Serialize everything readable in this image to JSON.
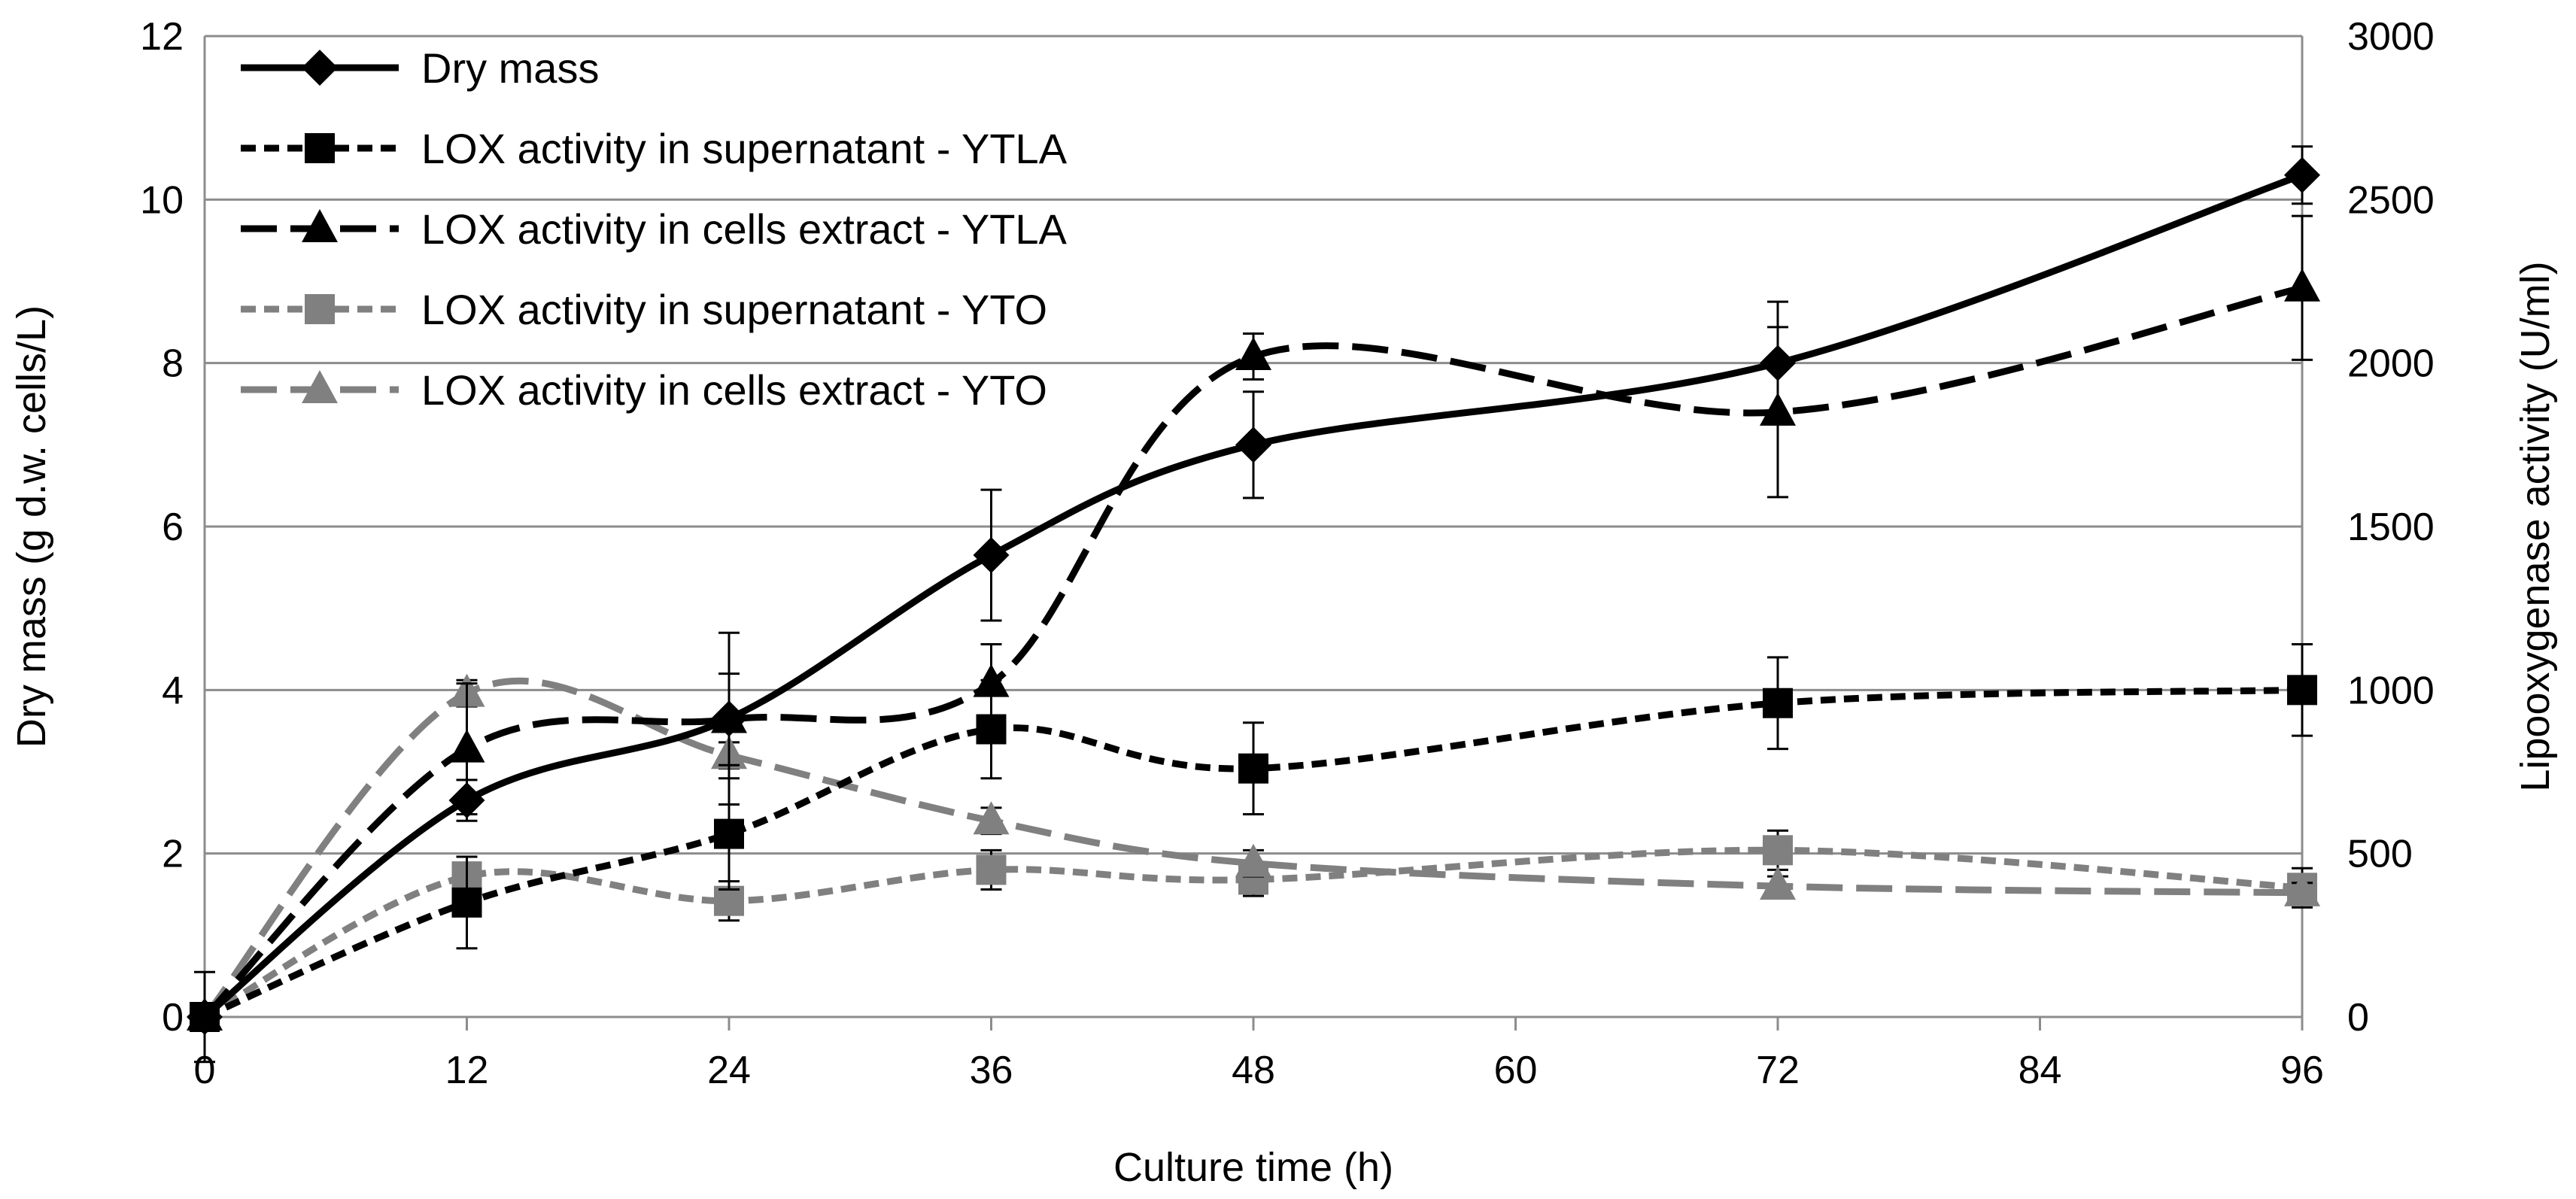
{
  "chart_data": {
    "type": "line",
    "title": "",
    "xlabel": "Culture time (h)",
    "ylabel": "Dry mass (g d.w. cells/L)",
    "y2label": "Lipooxygenase activity (U/ml)",
    "xlim": [
      0,
      96
    ],
    "ylim": [
      0,
      12
    ],
    "y2lim": [
      0,
      3000
    ],
    "x_ticks": [
      "0",
      "12",
      "24",
      "36",
      "48",
      "60",
      "72",
      "84",
      "96"
    ],
    "y_ticks": [
      "0",
      "2",
      "4",
      "6",
      "8",
      "10",
      "12"
    ],
    "y2_ticks": [
      "0",
      "500",
      "1000",
      "1500",
      "2000",
      "2500",
      "3000"
    ],
    "grid": "horizontal",
    "legend_position": "top-left",
    "series": [
      {
        "name": "Dry mass",
        "axis": "left",
        "color": "#000000",
        "marker": "diamond",
        "dash": "solid",
        "x": [
          0,
          12,
          24,
          36,
          48,
          72,
          96
        ],
        "values": [
          0,
          2.65,
          3.65,
          5.65,
          7.0,
          8.0,
          10.3
        ],
        "errors": [
          0.55,
          0.25,
          1.05,
          0.8,
          0.65,
          0.75,
          0.35
        ]
      },
      {
        "name": "LOX activity in supernatant - YTLA",
        "axis": "right",
        "color": "#000000",
        "marker": "square",
        "dash": "short",
        "x": [
          0,
          12,
          24,
          36,
          48,
          72,
          96
        ],
        "values": [
          0,
          350,
          560,
          880,
          760,
          960,
          1000
        ],
        "errors": [
          0,
          140,
          170,
          150,
          140,
          140,
          140
        ]
      },
      {
        "name": "LOX activity in cells extract - YTLA",
        "axis": "right",
        "color": "#000000",
        "marker": "triangle",
        "dash": "long",
        "x": [
          0,
          12,
          24,
          36,
          48,
          72,
          96
        ],
        "values": [
          0,
          820,
          910,
          1020,
          2020,
          1850,
          2230
        ],
        "errors": [
          0,
          200,
          140,
          120,
          70,
          260,
          220
        ]
      },
      {
        "name": "LOX activity in supernatant - YTO",
        "axis": "right",
        "color": "#808080",
        "marker": "square",
        "dash": "short",
        "x": [
          0,
          12,
          24,
          36,
          48,
          72,
          96
        ],
        "values": [
          0,
          430,
          355,
          450,
          420,
          510,
          395
        ],
        "errors": [
          0,
          60,
          60,
          60,
          50,
          60,
          60
        ]
      },
      {
        "name": "LOX activity in cells extract - YTO",
        "axis": "right",
        "color": "#808080",
        "marker": "triangle",
        "dash": "long",
        "x": [
          0,
          12,
          24,
          36,
          48,
          72,
          96
        ],
        "values": [
          0,
          990,
          800,
          600,
          470,
          400,
          380
        ],
        "errors": [
          0,
          40,
          40,
          40,
          40,
          30,
          30
        ]
      }
    ]
  }
}
